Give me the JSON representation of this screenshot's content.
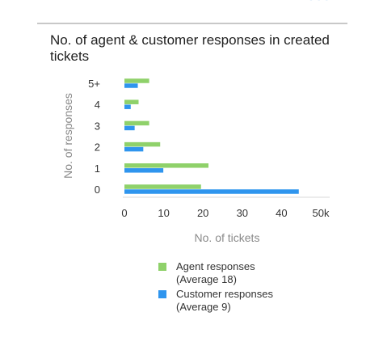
{
  "header": {
    "title": "No. of agent & customer responses in created tickets"
  },
  "chart_data": {
    "type": "bar",
    "orientation": "horizontal",
    "title": "No. of agent & customer responses in created tickets",
    "xlabel": "No. of tickets",
    "ylabel": "No. of responses",
    "categories": [
      "5+",
      "4",
      "3",
      "2",
      "1",
      "0"
    ],
    "x_ticks": [
      0,
      10,
      20,
      30,
      40,
      50
    ],
    "x_tick_labels": [
      "0",
      "10",
      "20",
      "30",
      "40",
      "50k"
    ],
    "xlim": [
      0,
      50
    ],
    "x_unit": "k",
    "grid": false,
    "legend_position": "bottom",
    "series": [
      {
        "name": "Agent responses (Average 18)",
        "legend_lines": [
          "Agent responses",
          "(Average 18)"
        ],
        "color": "#8fd16a",
        "values": [
          6.3,
          3.6,
          6.3,
          9.1,
          21.4,
          19.5
        ]
      },
      {
        "name": "Customer responses (Average 9)",
        "legend_lines": [
          "Customer responses",
          "(Average 9)"
        ],
        "color": "#2f95ee",
        "values": [
          3.4,
          1.6,
          2.6,
          4.8,
          9.9,
          44.4
        ]
      }
    ]
  }
}
